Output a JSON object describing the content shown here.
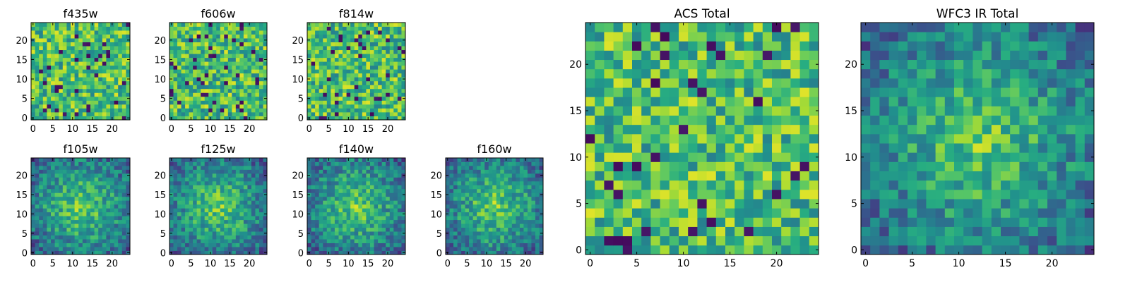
{
  "chart_data": [
    {
      "type": "heatmap",
      "title": "f435w",
      "rows": 25,
      "cols": 25,
      "xlim": [
        0,
        25
      ],
      "ylim": [
        0,
        25
      ],
      "xticks": [
        0,
        5,
        10,
        15,
        20
      ],
      "yticks": [
        0,
        5,
        10,
        15,
        20
      ],
      "colormap": "viridis",
      "pattern": "noise",
      "seed": 11
    },
    {
      "type": "heatmap",
      "title": "f606w",
      "rows": 25,
      "cols": 25,
      "xlim": [
        0,
        25
      ],
      "ylim": [
        0,
        25
      ],
      "xticks": [
        0,
        5,
        10,
        15,
        20
      ],
      "yticks": [
        0,
        5,
        10,
        15,
        20
      ],
      "colormap": "viridis",
      "pattern": "noise",
      "seed": 23
    },
    {
      "type": "heatmap",
      "title": "f814w",
      "rows": 25,
      "cols": 25,
      "xlim": [
        0,
        25
      ],
      "ylim": [
        0,
        25
      ],
      "xticks": [
        0,
        5,
        10,
        15,
        20
      ],
      "yticks": [
        0,
        5,
        10,
        15,
        20
      ],
      "colormap": "viridis",
      "pattern": "noise",
      "seed": 37
    },
    {
      "type": "heatmap",
      "title": "f105w",
      "rows": 25,
      "cols": 25,
      "xlim": [
        0,
        25
      ],
      "ylim": [
        0,
        25
      ],
      "xticks": [
        0,
        5,
        10,
        15,
        20
      ],
      "yticks": [
        0,
        5,
        10,
        15,
        20
      ],
      "colormap": "viridis",
      "pattern": "blob",
      "seed": 41
    },
    {
      "type": "heatmap",
      "title": "f125w",
      "rows": 25,
      "cols": 25,
      "xlim": [
        0,
        25
      ],
      "ylim": [
        0,
        25
      ],
      "xticks": [
        0,
        5,
        10,
        15,
        20
      ],
      "yticks": [
        0,
        5,
        10,
        15,
        20
      ],
      "colormap": "viridis",
      "pattern": "blob",
      "seed": 53
    },
    {
      "type": "heatmap",
      "title": "f140w",
      "rows": 25,
      "cols": 25,
      "xlim": [
        0,
        25
      ],
      "ylim": [
        0,
        25
      ],
      "xticks": [
        0,
        5,
        10,
        15,
        20
      ],
      "yticks": [
        0,
        5,
        10,
        15,
        20
      ],
      "colormap": "viridis",
      "pattern": "blob",
      "seed": 67
    },
    {
      "type": "heatmap",
      "title": "f160w",
      "rows": 25,
      "cols": 25,
      "xlim": [
        0,
        25
      ],
      "ylim": [
        0,
        25
      ],
      "xticks": [
        0,
        5,
        10,
        15,
        20
      ],
      "yticks": [
        0,
        5,
        10,
        15,
        20
      ],
      "colormap": "viridis",
      "pattern": "blob",
      "seed": 79
    },
    {
      "type": "heatmap",
      "title": "ACS Total",
      "rows": 25,
      "cols": 25,
      "xlim": [
        0,
        25
      ],
      "ylim": [
        0,
        25
      ],
      "xticks": [
        0,
        5,
        10,
        15,
        20
      ],
      "yticks": [
        0,
        5,
        10,
        15,
        20
      ],
      "colormap": "viridis",
      "pattern": "noise",
      "seed": 97
    },
    {
      "type": "heatmap",
      "title": "WFC3 IR Total",
      "rows": 25,
      "cols": 25,
      "xlim": [
        0,
        25
      ],
      "ylim": [
        0,
        25
      ],
      "xticks": [
        0,
        5,
        10,
        15,
        20
      ],
      "yticks": [
        0,
        5,
        10,
        15,
        20
      ],
      "colormap": "viridis",
      "pattern": "blob",
      "seed": 103
    }
  ]
}
